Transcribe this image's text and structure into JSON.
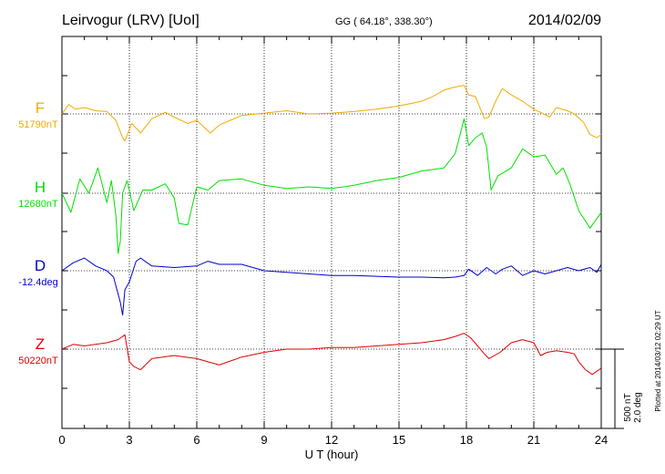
{
  "header": {
    "station": "Leirvogur (LRV)  [UoI]",
    "coords": "GG ( 64.18°, 338.30°)",
    "date": "2014/02/09"
  },
  "side_note": "Plotted at 2014/03/12 02:29 UT",
  "scale_bar": {
    "line1": "500 nT",
    "line2": "2.0 deg"
  },
  "colors": {
    "F": "#f2aa00",
    "H": "#00e000",
    "D": "#0000d0",
    "Z": "#e00000"
  },
  "chart_data": {
    "type": "line",
    "xlabel": "U T (hour)",
    "xlim": [
      0,
      24
    ],
    "x_ticks": [
      0,
      3,
      6,
      9,
      12,
      15,
      18,
      21,
      24
    ],
    "x_tick_labels": [
      "0",
      "3",
      "6",
      "9",
      "12",
      "15",
      "18",
      "21",
      "24"
    ],
    "y_units_note": "offsets from baseline in nT; 500 nT (2.0 deg) per panel spacing",
    "series": [
      {
        "name": "F",
        "baseline_label": "51790nT",
        "x": [
          0,
          0.3,
          0.6,
          1,
          1.5,
          2,
          2.4,
          2.7,
          2.8,
          3.1,
          3.5,
          4,
          4.6,
          5,
          5.6,
          6,
          6.6,
          7,
          8,
          9,
          10,
          11,
          12,
          13,
          14,
          15,
          16,
          16.5,
          17,
          17.5,
          17.9,
          18.1,
          18.4,
          18.8,
          19,
          19.3,
          19.6,
          20,
          20.5,
          21,
          21.3,
          21.7,
          22,
          22.5,
          22.8,
          23.2,
          23.5,
          23.8,
          24
        ],
        "y": [
          0,
          60,
          30,
          40,
          20,
          15,
          -40,
          -150,
          -170,
          -60,
          -120,
          -30,
          10,
          -20,
          -60,
          -40,
          -120,
          -70,
          -10,
          5,
          20,
          0,
          5,
          15,
          30,
          50,
          80,
          110,
          150,
          170,
          180,
          120,
          110,
          -30,
          -20,
          80,
          160,
          120,
          80,
          30,
          10,
          -20,
          40,
          20,
          0,
          -50,
          -130,
          -150,
          -130
        ]
      },
      {
        "name": "H",
        "baseline_label": "12680nT",
        "x": [
          0,
          0.4,
          0.8,
          1.2,
          1.6,
          2,
          2.2,
          2.4,
          2.5,
          2.6,
          2.7,
          2.9,
          3.2,
          3.6,
          4,
          4.6,
          5,
          5.2,
          5.6,
          6,
          6.5,
          7,
          8,
          9,
          10,
          11,
          12,
          13,
          14,
          15,
          16,
          17,
          17.5,
          17.9,
          18.1,
          18.4,
          18.7,
          18.9,
          19.1,
          19.4,
          20,
          20.5,
          21,
          21.5,
          22,
          22.3,
          22.6,
          23,
          23.5,
          24
        ],
        "y": [
          0,
          -120,
          90,
          0,
          160,
          -60,
          80,
          -140,
          -380,
          -300,
          0,
          80,
          -110,
          20,
          20,
          60,
          -30,
          -190,
          -200,
          40,
          20,
          80,
          90,
          50,
          30,
          40,
          30,
          50,
          80,
          100,
          140,
          160,
          250,
          470,
          300,
          350,
          380,
          290,
          20,
          110,
          160,
          280,
          230,
          240,
          120,
          160,
          60,
          -110,
          -220,
          -120
        ]
      },
      {
        "name": "D",
        "baseline_label": "-12.4deg",
        "x": [
          0,
          0.5,
          1,
          1.5,
          2,
          2.3,
          2.6,
          2.7,
          2.8,
          3,
          3.3,
          3.5,
          4,
          5,
          6,
          6.5,
          7,
          8,
          9,
          10,
          11,
          12,
          13,
          14,
          15,
          16,
          17,
          17.5,
          17.9,
          18.1,
          18.5,
          18.9,
          19.3,
          19.6,
          20,
          20.5,
          21,
          21.5,
          22,
          22.5,
          23,
          23.5,
          23.8,
          24
        ],
        "y": [
          0,
          50,
          80,
          30,
          0,
          -40,
          -200,
          -280,
          -120,
          -70,
          60,
          80,
          30,
          20,
          30,
          60,
          40,
          40,
          0,
          -10,
          -20,
          -30,
          -30,
          -35,
          -40,
          -40,
          -45,
          -40,
          -30,
          10,
          -30,
          20,
          -20,
          10,
          30,
          -30,
          0,
          -20,
          0,
          20,
          0,
          20,
          -10,
          40
        ]
      },
      {
        "name": "Z",
        "baseline_label": "50220nT",
        "x": [
          0,
          0.5,
          1,
          1.5,
          2,
          2.5,
          2.8,
          3,
          3.2,
          3.5,
          4,
          5,
          5.5,
          6,
          6.5,
          7,
          8,
          9,
          10,
          11,
          12,
          13,
          14,
          15,
          16,
          17,
          17.5,
          17.9,
          18.2,
          18.5,
          18.8,
          19,
          19.5,
          20,
          20.5,
          21,
          21.3,
          21.6,
          22,
          22.5,
          22.8,
          23,
          23.3,
          23.6,
          24
        ],
        "y": [
          0,
          30,
          20,
          30,
          40,
          60,
          90,
          -80,
          -110,
          -130,
          -60,
          -40,
          -50,
          -60,
          -80,
          -100,
          -50,
          -20,
          0,
          0,
          10,
          10,
          20,
          30,
          40,
          60,
          80,
          100,
          70,
          20,
          -30,
          -60,
          -20,
          40,
          60,
          40,
          -40,
          -20,
          -10,
          -20,
          -30,
          -80,
          -130,
          -160,
          -120
        ]
      }
    ]
  }
}
